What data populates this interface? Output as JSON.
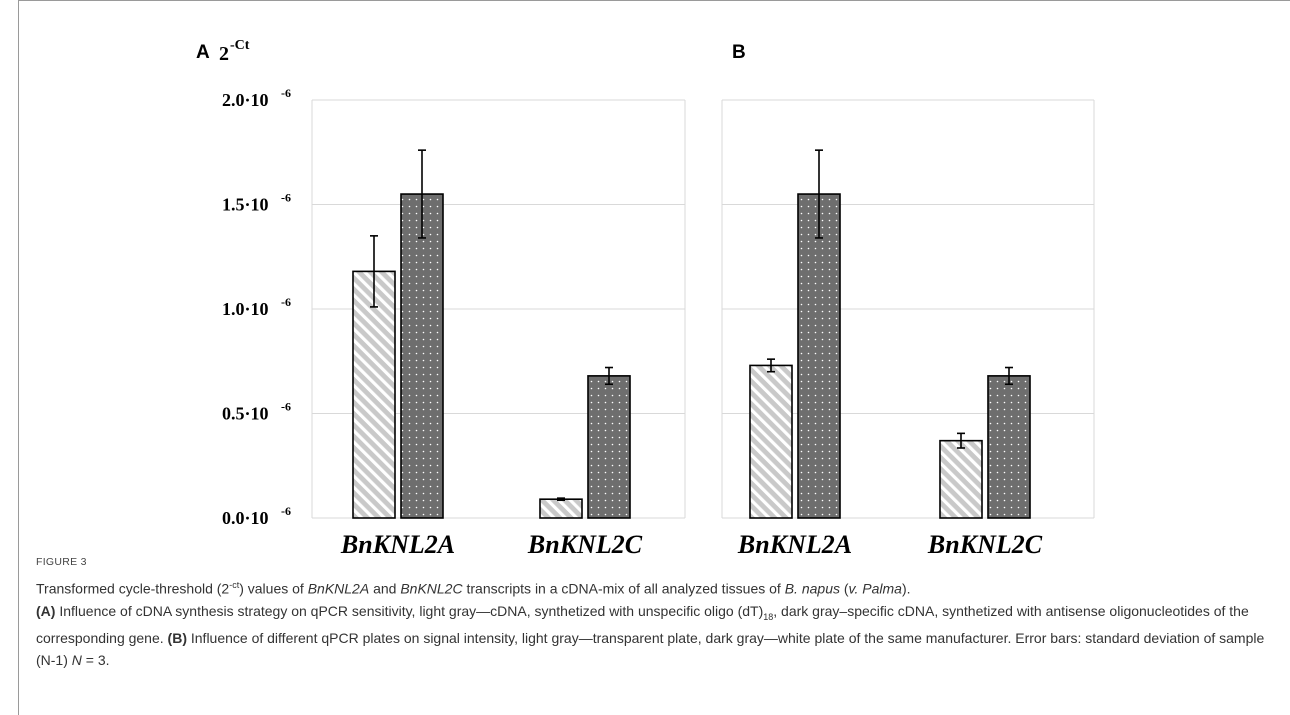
{
  "chart_data": [
    {
      "panel": "A",
      "type": "bar",
      "ylabel": "2",
      "ylabel_exp": "-Ct",
      "ylim": [
        0,
        2.0
      ],
      "ytick_values": [
        0.0,
        0.5,
        1.0,
        1.5,
        2.0
      ],
      "ytick_labels": [
        "0.0·10",
        "0.5·10",
        "1.0·10",
        "1.5·10",
        "2.0·10"
      ],
      "ytick_exp": "-6",
      "grid": true,
      "categories": [
        "BnKNL2A",
        "BnKNL2C"
      ],
      "series": [
        {
          "pattern": "hatched-light-gray",
          "values": [
            1.18,
            0.09
          ],
          "errors": [
            0.17,
            0.005
          ]
        },
        {
          "pattern": "dotted-dark-gray",
          "values": [
            1.55,
            0.68
          ],
          "errors": [
            0.21,
            0.04
          ]
        }
      ]
    },
    {
      "panel": "B",
      "type": "bar",
      "ylim": [
        0,
        2.0
      ],
      "grid": true,
      "categories": [
        "BnKNL2A",
        "BnKNL2C"
      ],
      "series": [
        {
          "pattern": "hatched-light-gray",
          "values": [
            0.73,
            0.37
          ],
          "errors": [
            0.03,
            0.035
          ]
        },
        {
          "pattern": "dotted-dark-gray",
          "values": [
            1.55,
            0.68
          ],
          "errors": [
            0.21,
            0.04
          ]
        }
      ]
    }
  ],
  "colors": {
    "light_bar": "#c9c9c9",
    "dark_bar": "#6e6e6e",
    "grid": "#d9d9d9",
    "panel_border": "#d9d9d9"
  },
  "caption": {
    "figure_label": "FIGURE 3",
    "line1_a": "Transformed cycle-threshold (2",
    "line1_sup": "-ct",
    "line1_b": ") values of ",
    "gene_a": "BnKNL2A",
    "and": " and ",
    "gene_c": "BnKNL2C",
    "line1_c": " transcripts in a cDNA-mix of all analyzed tissues of ",
    "species": "B. napus",
    "open_paren": " (",
    "variety": "v. Palma",
    "close_paren": ").",
    "panel_a": "(A)",
    "panel_a_text_1": " Influence of cDNA synthesis strategy on qPCR sensitivity, light gray—cDNA, synthetized with unspecific oligo (dT)",
    "panel_a_sub": "18",
    "panel_a_text_2": ", dark gray–specific cDNA, synthetized with antisense oligonucleotides of the corresponding gene. ",
    "panel_b": "(B)",
    "panel_b_text": " Influence of different qPCR plates on signal intensity, light gray—transparent plate, dark gray—white plate of the same manufacturer. Error bars: standard deviation of sample (N-1) ",
    "n_italic": "N",
    "n_value": " = 3."
  }
}
